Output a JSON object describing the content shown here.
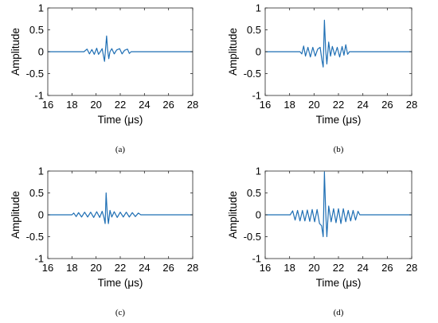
{
  "figure": {
    "panel_labels": [
      "(a)",
      "(b)",
      "(c)",
      "(d)"
    ],
    "series_color": "#1f6fb4"
  },
  "chart_data": [
    {
      "type": "line",
      "panel": "(a)",
      "xlabel": "Time (μs)",
      "ylabel": "Amplitude",
      "xlim": [
        16,
        28
      ],
      "ylim": [
        -1,
        1
      ],
      "xticks": [
        16,
        18,
        20,
        22,
        24,
        26,
        28
      ],
      "yticks": [
        -1,
        -0.5,
        0,
        0.5,
        1
      ],
      "ytick_labels": [
        "-1",
        "-0.5",
        "0",
        "0.5",
        "1"
      ],
      "x": [
        15.8,
        19.0,
        19.25,
        19.45,
        19.65,
        19.85,
        20.05,
        20.2,
        20.35,
        20.5,
        20.6,
        20.7,
        20.8,
        20.87,
        20.95,
        21.05,
        21.15,
        21.3,
        21.5,
        21.7,
        21.95,
        22.15,
        22.35,
        22.6,
        22.75,
        22.9,
        28.0
      ],
      "y": [
        0.0,
        0.0,
        0.06,
        -0.05,
        0.05,
        -0.06,
        0.08,
        -0.06,
        0.0,
        0.07,
        -0.08,
        -0.22,
        0.12,
        0.36,
        0.05,
        -0.16,
        0.0,
        0.07,
        -0.05,
        0.04,
        0.07,
        -0.05,
        0.03,
        0.06,
        -0.04,
        0.0,
        0.0
      ]
    },
    {
      "type": "line",
      "panel": "(b)",
      "xlabel": "Time (μs)",
      "ylabel": "Amplitude",
      "xlim": [
        16,
        28
      ],
      "ylim": [
        -1,
        1
      ],
      "xticks": [
        16,
        18,
        20,
        22,
        24,
        26,
        28
      ],
      "yticks": [
        -1,
        -0.5,
        0,
        0.5,
        1
      ],
      "ytick_labels": [
        "-1",
        "-0.5",
        "0",
        "0.5",
        "1"
      ],
      "x": [
        15.8,
        18.85,
        19.0,
        19.15,
        19.3,
        19.5,
        19.7,
        19.9,
        20.1,
        20.3,
        20.5,
        20.65,
        20.75,
        20.85,
        20.95,
        21.05,
        21.2,
        21.35,
        21.5,
        21.7,
        21.9,
        22.1,
        22.3,
        22.45,
        22.6,
        22.75,
        22.9,
        28.0
      ],
      "y": [
        0.0,
        0.0,
        -0.05,
        0.13,
        -0.1,
        0.1,
        -0.12,
        0.1,
        -0.1,
        0.06,
        0.1,
        -0.2,
        -0.35,
        0.72,
        0.05,
        -0.28,
        0.22,
        -0.1,
        0.12,
        -0.08,
        0.1,
        -0.12,
        0.12,
        -0.08,
        0.16,
        -0.06,
        0.0,
        0.0
      ]
    },
    {
      "type": "line",
      "panel": "(c)",
      "xlabel": "Time (μs)",
      "ylabel": "Amplitude",
      "xlim": [
        16,
        28
      ],
      "ylim": [
        -1,
        1
      ],
      "xticks": [
        16,
        18,
        20,
        22,
        24,
        26,
        28
      ],
      "yticks": [
        -1,
        -0.5,
        0,
        0.5,
        1
      ],
      "ytick_labels": [
        "-1",
        "-0.5",
        "0",
        "0.5",
        "1"
      ],
      "x": [
        15.8,
        18.0,
        18.15,
        18.35,
        18.55,
        18.8,
        19.05,
        19.3,
        19.55,
        19.8,
        20.05,
        20.3,
        20.5,
        20.65,
        20.75,
        20.83,
        20.92,
        21.02,
        21.15,
        21.3,
        21.5,
        21.75,
        22.0,
        22.25,
        22.5,
        22.75,
        23.0,
        23.25,
        23.5,
        23.7,
        28.0
      ],
      "y": [
        0.0,
        0.0,
        0.04,
        -0.04,
        0.05,
        -0.05,
        0.06,
        -0.05,
        0.06,
        -0.06,
        0.07,
        -0.06,
        0.08,
        -0.06,
        -0.2,
        0.5,
        0.05,
        -0.2,
        0.1,
        -0.05,
        0.07,
        -0.06,
        0.06,
        -0.05,
        0.06,
        -0.05,
        0.05,
        -0.04,
        0.04,
        0.0,
        0.0
      ]
    },
    {
      "type": "line",
      "panel": "(d)",
      "xlabel": "Time (μs)",
      "ylabel": "Amplitude",
      "xlim": [
        16,
        28
      ],
      "ylim": [
        -1,
        1
      ],
      "xticks": [
        16,
        18,
        20,
        22,
        24,
        26,
        28
      ],
      "yticks": [
        -1,
        -0.5,
        0,
        0.5,
        1
      ],
      "ytick_labels": [
        "-1",
        "-0.5",
        "0",
        "0.5",
        "1"
      ],
      "x": [
        15.8,
        18.05,
        18.25,
        18.45,
        18.65,
        18.85,
        19.05,
        19.25,
        19.45,
        19.65,
        19.85,
        20.05,
        20.25,
        20.45,
        20.62,
        20.75,
        20.85,
        20.95,
        21.05,
        21.2,
        21.4,
        21.6,
        21.8,
        22.0,
        22.2,
        22.4,
        22.6,
        22.8,
        23.0,
        23.2,
        23.4,
        23.6,
        23.75,
        28.0
      ],
      "y": [
        0.0,
        0.0,
        0.09,
        -0.12,
        0.1,
        -0.14,
        0.1,
        -0.14,
        0.11,
        -0.15,
        0.12,
        -0.16,
        0.12,
        -0.2,
        -0.25,
        -0.5,
        0.98,
        0.1,
        -0.5,
        0.2,
        -0.16,
        0.14,
        -0.18,
        0.14,
        -0.2,
        0.14,
        -0.16,
        0.1,
        -0.14,
        0.1,
        -0.12,
        0.08,
        0.0,
        0.0
      ]
    }
  ]
}
